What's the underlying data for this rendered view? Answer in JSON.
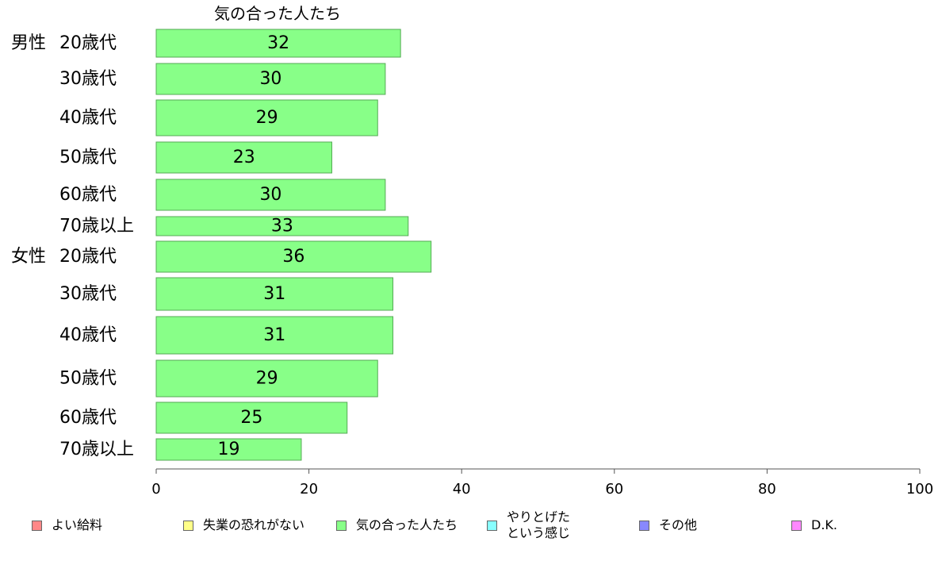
{
  "chart_data": {
    "type": "bar",
    "orientation": "horizontal",
    "title": "気の合った人たち",
    "categories": [
      {
        "group": "男性",
        "label": "20歳代"
      },
      {
        "group": "",
        "label": "30歳代"
      },
      {
        "group": "",
        "label": "40歳代"
      },
      {
        "group": "",
        "label": "50歳代"
      },
      {
        "group": "",
        "label": "60歳代"
      },
      {
        "group": "",
        "label": "70歳以上"
      },
      {
        "group": "女性",
        "label": "20歳代"
      },
      {
        "group": "",
        "label": "30歳代"
      },
      {
        "group": "",
        "label": "40歳代"
      },
      {
        "group": "",
        "label": "50歳代"
      },
      {
        "group": "",
        "label": "60歳代"
      },
      {
        "group": "",
        "label": "70歳以上"
      }
    ],
    "values": [
      32,
      30,
      29,
      23,
      30,
      33,
      36,
      31,
      31,
      29,
      25,
      19
    ],
    "xlim": [
      0,
      100
    ],
    "xticks": [
      "0",
      "20",
      "40",
      "60",
      "80",
      "100"
    ],
    "grid": false,
    "bar_color": "#88ff88",
    "bar_border": "#55aa55",
    "legend": [
      {
        "label": "よい給料",
        "color": "#ff8888"
      },
      {
        "label": "失業の恐れがない",
        "color": "#ffff88"
      },
      {
        "label": "気の合った人たち",
        "color": "#88ff88"
      },
      {
        "label": "やりとげた\nという感じ",
        "color": "#88ffff"
      },
      {
        "label": "その他",
        "color": "#8888ff"
      },
      {
        "label": "D.K.",
        "color": "#ff88ff"
      }
    ]
  }
}
